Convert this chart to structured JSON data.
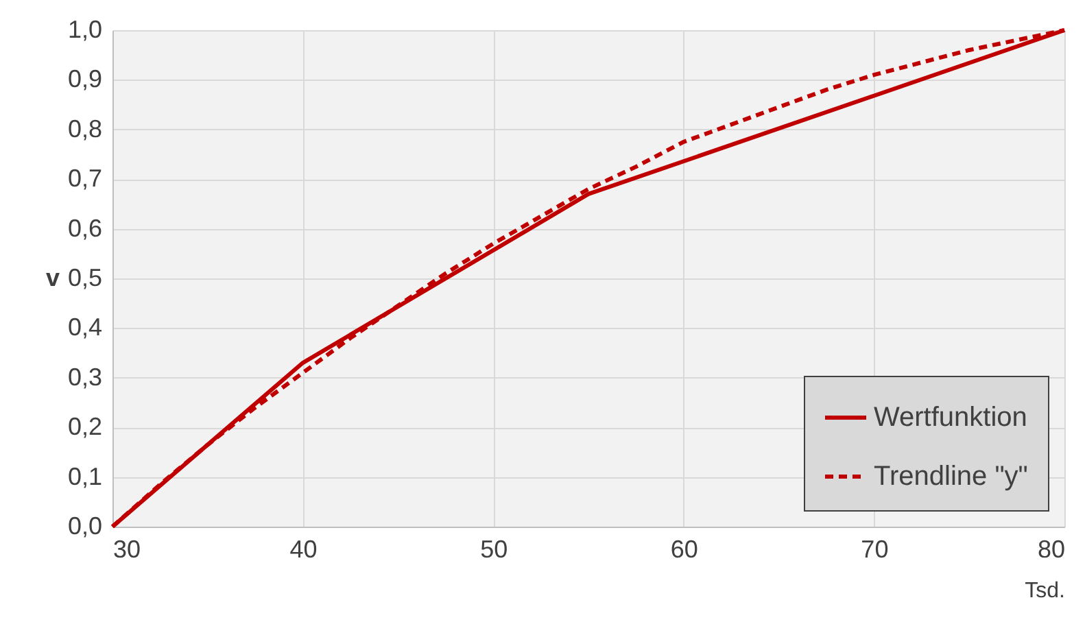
{
  "chart_data": {
    "type": "line",
    "xlabel": "Tsd.",
    "ylabel": "v",
    "xlim": [
      30,
      80
    ],
    "xticks": [
      30,
      40,
      50,
      60,
      70,
      80
    ],
    "ylim": [
      0,
      1
    ],
    "yticks": [
      {
        "value": 0,
        "label": "0,0"
      },
      {
        "value": 0.1,
        "label": "0,1"
      },
      {
        "value": 0.2,
        "label": "0,2"
      },
      {
        "value": 0.3,
        "label": "0,3"
      },
      {
        "value": 0.4,
        "label": "0,4"
      },
      {
        "value": 0.5,
        "label": "0,5"
      },
      {
        "value": 0.6,
        "label": "0,6"
      },
      {
        "value": 0.7,
        "label": "0,7"
      },
      {
        "value": 0.8,
        "label": "0,8"
      },
      {
        "value": 0.9,
        "label": "0,9"
      },
      {
        "value": 1,
        "label": "1,0"
      }
    ],
    "grid": true,
    "legend": "bottom right",
    "marker": "none",
    "series": [
      {
        "name": "Wertfunktion",
        "color": "#c00000",
        "line_style": "solid",
        "x": [
          30,
          40,
          55,
          80
        ],
        "values": [
          0,
          0.33,
          0.67,
          1.0
        ]
      },
      {
        "name": "Trendline \"y\"",
        "color": "#c00000",
        "line_style": "dashed",
        "x": [
          30,
          32.5,
          35,
          37.5,
          40,
          42.5,
          45,
          47.5,
          50,
          52.5,
          55,
          57.5,
          60,
          62.5,
          65,
          67.5,
          70,
          72.5,
          75,
          77.5,
          80
        ],
        "values": [
          0,
          0.085,
          0.165,
          0.24,
          0.31,
          0.38,
          0.445,
          0.51,
          0.57,
          0.625,
          0.68,
          0.725,
          0.775,
          0.81,
          0.845,
          0.88,
          0.91,
          0.935,
          0.96,
          0.98,
          1.0
        ]
      }
    ]
  }
}
